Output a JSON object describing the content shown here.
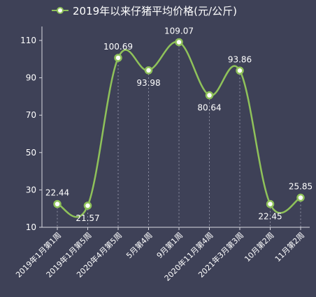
{
  "chart_data": {
    "type": "line",
    "title": "2019年以来仔猪平均价格(元/公斤)",
    "legend": [
      "2019年以来仔猪平均价格(元/公斤)"
    ],
    "legend_position": "top",
    "categories": [
      "2019年1月第1周",
      "2019年1月第5周",
      "2020年4月第5周",
      "5月第4周",
      "9月第1周",
      "2020年11月第4周",
      "2021年3月第3周",
      "10月第2周",
      "11月第2周"
    ],
    "series": [
      {
        "name": "2019年以来仔猪平均价格(元/公斤)",
        "values": [
          22.44,
          21.57,
          100.69,
          93.98,
          109.07,
          80.64,
          93.86,
          22.45,
          25.85
        ],
        "labels": [
          "22.44",
          "21.57",
          "100.69",
          "93.98",
          "109.07",
          "80.64",
          "93.86",
          "22.45",
          "25.85"
        ],
        "color": "#8fc25a"
      }
    ],
    "yticks": [
      "10",
      "30",
      "50",
      "70",
      "90",
      "110"
    ],
    "ylim": [
      10,
      110
    ],
    "grid": false,
    "colors": {
      "background": "#3e4157",
      "line": "#8fc25a",
      "marker_fill": "#ffffff",
      "text": "#ffffff",
      "guide": "#8e90a3"
    }
  }
}
